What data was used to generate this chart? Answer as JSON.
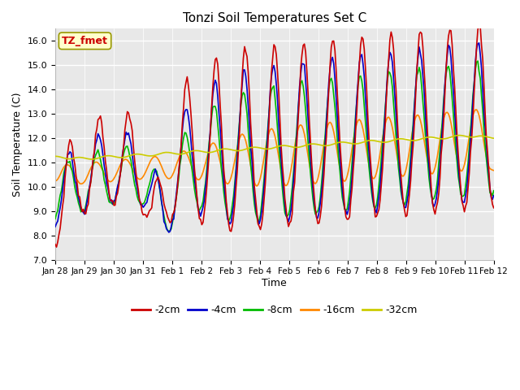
{
  "title": "Tonzi Soil Temperatures Set C",
  "xlabel": "Time",
  "ylabel": "Soil Temperature (C)",
  "ylim": [
    7.0,
    16.5
  ],
  "yticks": [
    7.0,
    8.0,
    9.0,
    10.0,
    11.0,
    12.0,
    13.0,
    14.0,
    15.0,
    16.0
  ],
  "colors": {
    "-2cm": "#cc0000",
    "-4cm": "#0000cc",
    "-8cm": "#00bb00",
    "-16cm": "#ff8800",
    "-32cm": "#cccc00"
  },
  "legend_labels": [
    "-2cm",
    "-4cm",
    "-8cm",
    "-16cm",
    "-32cm"
  ],
  "plot_bg": "#e8e8e8",
  "fig_bg": "#ffffff",
  "annotation_text": "TZ_fmet",
  "annotation_color": "#cc0000",
  "annotation_bg": "#ffffcc",
  "annotation_edge": "#999900",
  "xtick_labels": [
    "Jan 28",
    "Jan 29",
    "Jan 30",
    "Jan 31",
    "Feb 1",
    "Feb 2",
    "Feb 3",
    "Feb 4",
    "Feb 5",
    "Feb 6",
    "Feb 7",
    "Feb 8",
    "Feb 9",
    "Feb 10",
    "Feb 11",
    "Feb 12"
  ],
  "grid_color": "#ffffff",
  "title_fontsize": 11,
  "tick_fontsize": 8,
  "ylabel_fontsize": 9,
  "xlabel_fontsize": 9,
  "linewidth": 1.2
}
